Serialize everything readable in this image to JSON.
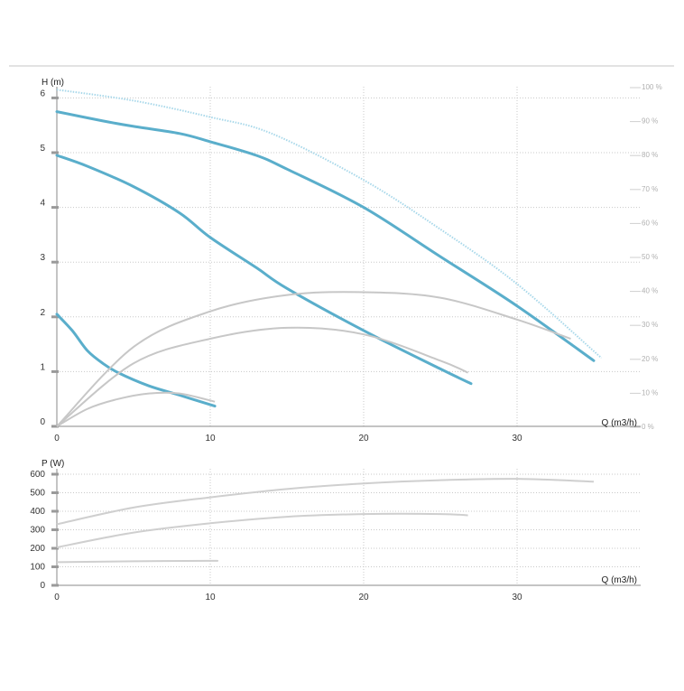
{
  "chart_data": [
    {
      "type": "line",
      "title": "",
      "xlabel": "Q (m3/h)",
      "ylabel": "H (m)",
      "y2label": "",
      "xlim": [
        0,
        38.5
      ],
      "ylim": [
        0,
        6
      ],
      "y2lim": [
        0,
        100
      ],
      "xticks": [
        0,
        10,
        20,
        30
      ],
      "yticks": [
        0,
        1,
        2,
        3,
        4,
        5,
        6
      ],
      "y2ticks": [
        "0 %",
        "10 %",
        "20 %",
        "30 %",
        "40 %",
        "50 %",
        "60 %",
        "70 %",
        "80 %",
        "90 %",
        "100 %"
      ],
      "grid": true,
      "colors": {
        "head": "#5aaecb",
        "efficiency": "#c7c7c7",
        "max_dotted": "#a8d8ea",
        "grid": "#c8c8c8",
        "axis": "#888888"
      },
      "series": [
        {
          "kind": "head",
          "x": [
            0,
            3,
            5,
            8,
            10,
            13,
            15,
            20,
            25,
            30,
            35
          ],
          "y": [
            5.75,
            5.58,
            5.48,
            5.35,
            5.2,
            4.95,
            4.7,
            4.0,
            3.1,
            2.2,
            1.2
          ]
        },
        {
          "kind": "head",
          "x": [
            0,
            2,
            5,
            8,
            10,
            13,
            15,
            20,
            25,
            27
          ],
          "y": [
            4.95,
            4.75,
            4.38,
            3.9,
            3.45,
            2.9,
            2.52,
            1.75,
            1.05,
            0.78
          ]
        },
        {
          "kind": "head",
          "x": [
            0,
            1,
            2,
            3,
            4,
            6,
            8,
            10.3
          ],
          "y": [
            2.05,
            1.75,
            1.38,
            1.15,
            0.98,
            0.74,
            0.57,
            0.37
          ]
        },
        {
          "kind": "max",
          "x": [
            0,
            5,
            10,
            14,
            20,
            25,
            30,
            35.5
          ],
          "y": [
            6.15,
            5.95,
            5.65,
            5.35,
            4.5,
            3.6,
            2.6,
            1.25
          ]
        },
        {
          "kind": "efficiency",
          "x": [
            0,
            5,
            10,
            15,
            20,
            25,
            30,
            33.5
          ],
          "y": [
            0,
            1.45,
            2.1,
            2.4,
            2.45,
            2.35,
            1.95,
            1.6
          ]
        },
        {
          "kind": "efficiency",
          "x": [
            0,
            5,
            10,
            15,
            20,
            25,
            26.8
          ],
          "y": [
            0,
            1.15,
            1.6,
            1.8,
            1.68,
            1.2,
            0.98
          ]
        },
        {
          "kind": "efficiency",
          "x": [
            0,
            2,
            4,
            6,
            8,
            10.3
          ],
          "y": [
            0,
            0.32,
            0.5,
            0.6,
            0.6,
            0.45
          ]
        }
      ]
    },
    {
      "type": "line",
      "title": "",
      "xlabel": "Q (m3/h)",
      "ylabel": "P (W)",
      "xlim": [
        0,
        38.5
      ],
      "ylim": [
        0,
        600
      ],
      "xticks": [
        0,
        10,
        20,
        30
      ],
      "yticks": [
        0,
        100,
        200,
        300,
        400,
        500,
        600
      ],
      "grid": true,
      "colors": {
        "power": "#cfcfcf",
        "grid": "#c8c8c8",
        "axis": "#888888"
      },
      "series": [
        {
          "kind": "power",
          "x": [
            0,
            5,
            10,
            15,
            20,
            25,
            30,
            35
          ],
          "y": [
            330,
            420,
            475,
            520,
            550,
            568,
            575,
            560
          ]
        },
        {
          "kind": "power",
          "x": [
            0,
            5,
            10,
            15,
            20,
            25,
            26.8
          ],
          "y": [
            205,
            285,
            335,
            370,
            385,
            385,
            378
          ]
        },
        {
          "kind": "power",
          "x": [
            0,
            5,
            10,
            10.3
          ],
          "y": [
            125,
            130,
            132,
            132
          ]
        }
      ]
    }
  ]
}
